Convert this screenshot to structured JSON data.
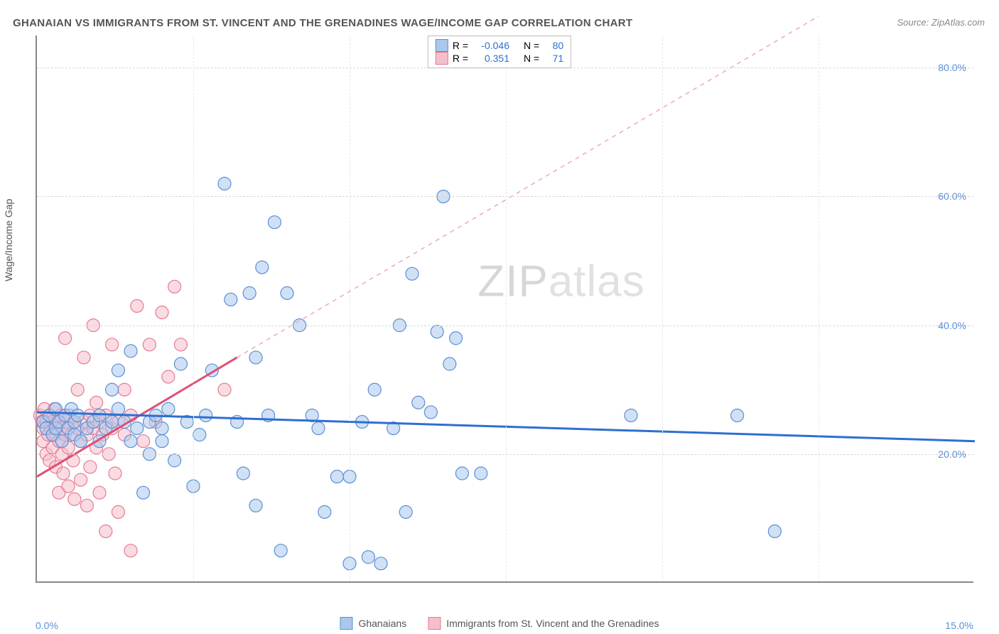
{
  "title": "GHANAIAN VS IMMIGRANTS FROM ST. VINCENT AND THE GRENADINES WAGE/INCOME GAP CORRELATION CHART",
  "source": "Source: ZipAtlas.com",
  "y_axis_label": "Wage/Income Gap",
  "watermark_left": "ZIP",
  "watermark_right": "atlas",
  "chart": {
    "type": "scatter",
    "background_color": "#ffffff",
    "grid_color": "#d8d8d8",
    "axis_color": "#888888",
    "xlim": [
      0,
      15
    ],
    "ylim": [
      0,
      85
    ],
    "x_ticks": [
      {
        "v": 0,
        "label": "0.0%"
      },
      {
        "v": 15,
        "label": "15.0%"
      }
    ],
    "x_gridlines": [
      2.5,
      5,
      7.5,
      10,
      12.5
    ],
    "y_ticks": [
      {
        "v": 20,
        "label": "20.0%"
      },
      {
        "v": 40,
        "label": "40.0%"
      },
      {
        "v": 60,
        "label": "60.0%"
      },
      {
        "v": 80,
        "label": "80.0%"
      }
    ],
    "series": [
      {
        "name": "Ghanaians",
        "legend_label": "Ghanaians",
        "color_fill": "#a9c8ec",
        "color_stroke": "#5b8fd6",
        "marker_radius": 9,
        "fill_opacity": 0.55,
        "R_label": "R =",
        "R_value": "-0.046",
        "N_label": "N =",
        "N_value": "80",
        "trend": {
          "x1": 0,
          "y1": 26.5,
          "x2": 15,
          "y2": 22.0,
          "color": "#2e6fd0",
          "width": 3,
          "dash": false,
          "extend_dash": false
        },
        "points": [
          [
            0.1,
            25
          ],
          [
            0.15,
            24
          ],
          [
            0.2,
            26
          ],
          [
            0.25,
            23
          ],
          [
            0.3,
            27
          ],
          [
            0.3,
            24
          ],
          [
            0.35,
            25
          ],
          [
            0.4,
            22
          ],
          [
            0.45,
            26
          ],
          [
            0.5,
            24
          ],
          [
            0.55,
            27
          ],
          [
            0.6,
            23
          ],
          [
            0.6,
            25
          ],
          [
            0.65,
            26
          ],
          [
            0.7,
            22
          ],
          [
            0.8,
            24
          ],
          [
            0.9,
            25
          ],
          [
            1.0,
            22
          ],
          [
            1.0,
            26
          ],
          [
            1.1,
            24
          ],
          [
            1.2,
            25
          ],
          [
            1.2,
            30
          ],
          [
            1.3,
            33
          ],
          [
            1.3,
            27
          ],
          [
            1.4,
            25
          ],
          [
            1.5,
            36
          ],
          [
            1.5,
            22
          ],
          [
            1.6,
            24
          ],
          [
            1.7,
            14
          ],
          [
            1.8,
            25
          ],
          [
            1.8,
            20
          ],
          [
            1.9,
            26
          ],
          [
            2.0,
            22
          ],
          [
            2.0,
            24
          ],
          [
            2.1,
            27
          ],
          [
            2.2,
            19
          ],
          [
            2.3,
            34
          ],
          [
            2.4,
            25
          ],
          [
            2.5,
            15
          ],
          [
            2.6,
            23
          ],
          [
            2.7,
            26
          ],
          [
            2.8,
            33
          ],
          [
            3.0,
            62
          ],
          [
            3.1,
            44
          ],
          [
            3.2,
            25
          ],
          [
            3.3,
            17
          ],
          [
            3.4,
            45
          ],
          [
            3.5,
            12
          ],
          [
            3.5,
            35
          ],
          [
            3.6,
            49
          ],
          [
            3.7,
            26
          ],
          [
            3.8,
            56
          ],
          [
            3.9,
            5
          ],
          [
            4.0,
            45
          ],
          [
            4.2,
            40
          ],
          [
            4.4,
            26
          ],
          [
            4.5,
            24
          ],
          [
            4.6,
            11
          ],
          [
            4.8,
            16.5
          ],
          [
            5.0,
            16.5
          ],
          [
            5.0,
            3
          ],
          [
            5.2,
            25
          ],
          [
            5.3,
            4
          ],
          [
            5.4,
            30
          ],
          [
            5.5,
            3
          ],
          [
            5.7,
            24
          ],
          [
            5.8,
            40
          ],
          [
            5.9,
            11
          ],
          [
            6.0,
            48
          ],
          [
            6.1,
            28
          ],
          [
            6.3,
            26.5
          ],
          [
            6.4,
            39
          ],
          [
            6.5,
            60
          ],
          [
            6.6,
            34
          ],
          [
            6.7,
            38
          ],
          [
            6.8,
            17
          ],
          [
            7.1,
            17
          ],
          [
            11.8,
            8
          ],
          [
            11.2,
            26
          ],
          [
            9.5,
            26
          ]
        ]
      },
      {
        "name": "Immigrants from St. Vincent and the Grenadines",
        "legend_label": "Immigrants from St. Vincent and the Grenadines",
        "color_fill": "#f4bfcb",
        "color_stroke": "#e77a94",
        "marker_radius": 9,
        "fill_opacity": 0.55,
        "R_label": "R =",
        "R_value": "0.351",
        "N_label": "N =",
        "N_value": "71",
        "trend": {
          "x1": 0,
          "y1": 16.5,
          "x2": 3.2,
          "y2": 35,
          "color": "#e04f74",
          "width": 3,
          "dash": false,
          "extend_dash": true,
          "ext_x2": 12.5,
          "ext_y2": 88,
          "ext_color": "#f0a8b8"
        },
        "points": [
          [
            0.05,
            26
          ],
          [
            0.08,
            25
          ],
          [
            0.1,
            22
          ],
          [
            0.1,
            24
          ],
          [
            0.12,
            27
          ],
          [
            0.15,
            20
          ],
          [
            0.15,
            25
          ],
          [
            0.18,
            23
          ],
          [
            0.2,
            26
          ],
          [
            0.2,
            19
          ],
          [
            0.22,
            24
          ],
          [
            0.25,
            21
          ],
          [
            0.25,
            25
          ],
          [
            0.28,
            27
          ],
          [
            0.3,
            23
          ],
          [
            0.3,
            18
          ],
          [
            0.32,
            25
          ],
          [
            0.35,
            14
          ],
          [
            0.35,
            22
          ],
          [
            0.38,
            26
          ],
          [
            0.4,
            20
          ],
          [
            0.4,
            24
          ],
          [
            0.42,
            17
          ],
          [
            0.45,
            23
          ],
          [
            0.45,
            38
          ],
          [
            0.48,
            25
          ],
          [
            0.5,
            21
          ],
          [
            0.5,
            15
          ],
          [
            0.52,
            26
          ],
          [
            0.55,
            23
          ],
          [
            0.58,
            19
          ],
          [
            0.6,
            25
          ],
          [
            0.6,
            13
          ],
          [
            0.65,
            24
          ],
          [
            0.65,
            30
          ],
          [
            0.7,
            22
          ],
          [
            0.7,
            16
          ],
          [
            0.75,
            25
          ],
          [
            0.75,
            35
          ],
          [
            0.8,
            23
          ],
          [
            0.8,
            12
          ],
          [
            0.85,
            26
          ],
          [
            0.85,
            18
          ],
          [
            0.9,
            24
          ],
          [
            0.9,
            40
          ],
          [
            0.95,
            21
          ],
          [
            0.95,
            28
          ],
          [
            1.0,
            25
          ],
          [
            1.0,
            14
          ],
          [
            1.05,
            23
          ],
          [
            1.1,
            8
          ],
          [
            1.1,
            26
          ],
          [
            1.15,
            20
          ],
          [
            1.2,
            24
          ],
          [
            1.2,
            37
          ],
          [
            1.25,
            17
          ],
          [
            1.3,
            25
          ],
          [
            1.3,
            11
          ],
          [
            1.4,
            23
          ],
          [
            1.4,
            30
          ],
          [
            1.5,
            5
          ],
          [
            1.5,
            26
          ],
          [
            1.6,
            43
          ],
          [
            1.7,
            22
          ],
          [
            1.8,
            37
          ],
          [
            1.9,
            25
          ],
          [
            2.0,
            42
          ],
          [
            2.1,
            32
          ],
          [
            2.2,
            46
          ],
          [
            2.3,
            37
          ],
          [
            3.0,
            30
          ]
        ]
      }
    ]
  }
}
